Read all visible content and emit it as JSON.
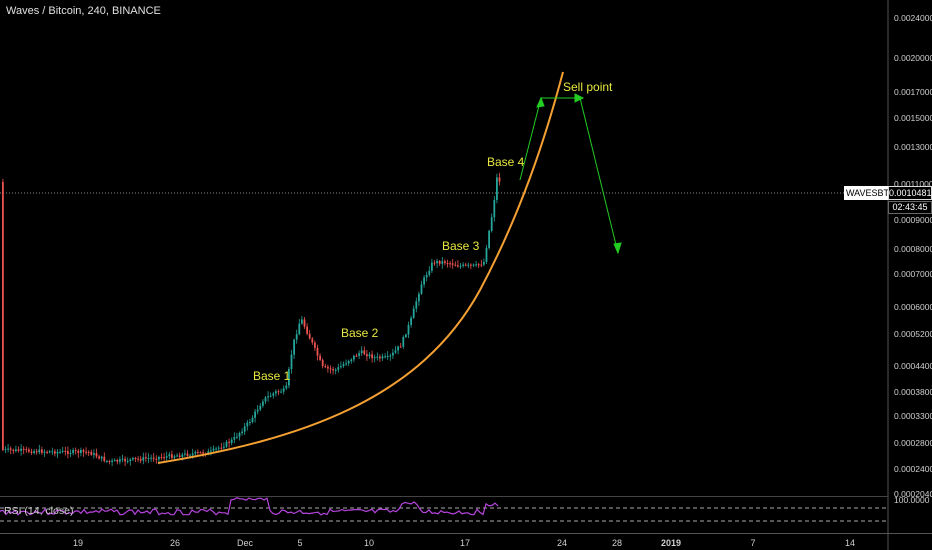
{
  "header": {
    "title": "Waves / Bitcoin, 240, BINANCE"
  },
  "price_axis": {
    "labels": [
      "0.0024000",
      "0.0020000",
      "0.0017000",
      "0.0015000",
      "0.0013000",
      "0.0011000",
      "0.0009000",
      "0.0008000",
      "0.0007000",
      "0.0006000",
      "0.0005200",
      "0.0004400",
      "0.0003800",
      "0.0003300",
      "0.0002800",
      "0.0002400",
      "0.0002040"
    ],
    "scale": "log"
  },
  "current_price": {
    "symbol": "WAVESBTC",
    "value": "0.0010481",
    "timer": "02:43:45"
  },
  "time_axis": {
    "labels": [
      "19",
      "26",
      "Dec",
      "5",
      "10",
      "17",
      "24",
      "28",
      "2019",
      "7",
      "14"
    ]
  },
  "annotations": {
    "base1": "Base 1",
    "base2": "Base 2",
    "base3": "Base 3",
    "base4": "Base 4",
    "sell": "Sell point"
  },
  "rsi": {
    "label": "RSI (14, close)",
    "axis_value": "100.0000"
  },
  "colors": {
    "up_candle": "#26a69a",
    "down_candle": "#ef5350",
    "curve": "#f5a032",
    "arrows": "#22cc22",
    "annotation_text": "#e8e840",
    "rsi_line": "#b844e0"
  },
  "chart_data": {
    "type": "candlestick",
    "title": "Waves / Bitcoin, 240, BINANCE",
    "yscale": "log",
    "ylim": [
      0.000204,
      0.0024
    ],
    "last_price": 0.0010481,
    "bases": [
      {
        "label": "Base 1",
        "approx_price": 0.00038
      },
      {
        "label": "Base 2",
        "approx_price": 0.00048
      },
      {
        "label": "Base 3",
        "approx_price": 0.00074
      },
      {
        "label": "Base 4",
        "approx_price": 0.00108
      }
    ]
  }
}
